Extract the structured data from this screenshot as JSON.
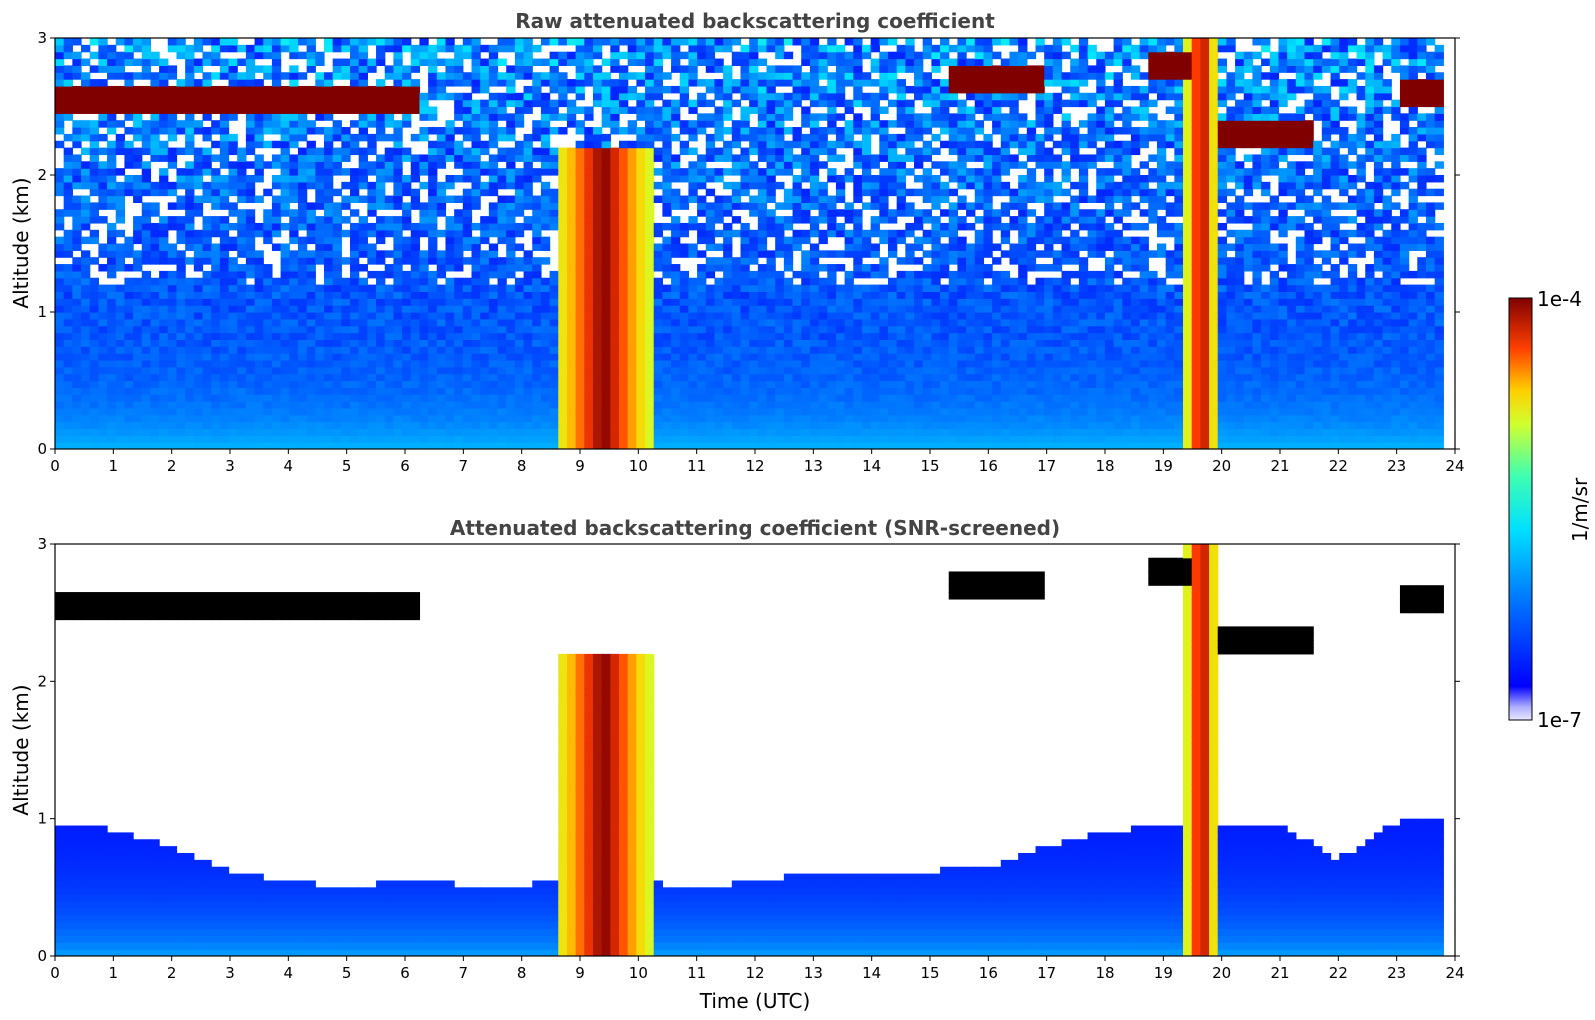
{
  "chart_data": [
    {
      "type": "heatmap",
      "title": "Raw attenuated backscattering coefficient",
      "xlabel": "",
      "ylabel": "Altitude (km)",
      "xlim": [
        0,
        24
      ],
      "ylim": [
        0,
        3
      ],
      "xticks": [
        "0",
        "1",
        "2",
        "3",
        "4",
        "5",
        "6",
        "7",
        "8",
        "9",
        "10",
        "11",
        "12",
        "13",
        "14",
        "15",
        "16",
        "17",
        "18",
        "19",
        "20",
        "21",
        "22",
        "23",
        "24"
      ],
      "yticks": [
        "0",
        "1",
        "2",
        "3"
      ],
      "data_time_range_utc": [
        0,
        23.8
      ],
      "screened": false,
      "cloud_layers": [
        {
          "t_start": 0.0,
          "t_end": 6.3,
          "alt_km": 2.55
        },
        {
          "t_start": 15.3,
          "t_end": 17.0,
          "alt_km": 2.7
        },
        {
          "t_start": 18.7,
          "t_end": 19.5,
          "alt_km": 2.8
        },
        {
          "t_start": 20.0,
          "t_end": 21.5,
          "alt_km": 2.3
        },
        {
          "t_start": 23.0,
          "t_end": 23.8,
          "alt_km": 2.6
        }
      ],
      "precipitation_columns": [
        {
          "t_start": 8.6,
          "t_end": 10.2,
          "top_km": 2.2
        },
        {
          "t_start": 19.4,
          "t_end": 19.9,
          "top_km": 3.0
        }
      ]
    },
    {
      "type": "heatmap",
      "title": "Attenuated backscattering coefficient (SNR-screened)",
      "xlabel": "Time (UTC)",
      "ylabel": "Altitude (km)",
      "xlim": [
        0,
        24
      ],
      "ylim": [
        0,
        3
      ],
      "xticks": [
        "0",
        "1",
        "2",
        "3",
        "4",
        "5",
        "6",
        "7",
        "8",
        "9",
        "10",
        "11",
        "12",
        "13",
        "14",
        "15",
        "16",
        "17",
        "18",
        "19",
        "20",
        "21",
        "22",
        "23",
        "24"
      ],
      "yticks": [
        "0",
        "1",
        "2",
        "3"
      ],
      "data_time_range_utc": [
        0,
        23.8
      ],
      "screened": true,
      "boundary_layer_top_km": [
        [
          0,
          0.95
        ],
        [
          1,
          0.92
        ],
        [
          2,
          0.8
        ],
        [
          3,
          0.62
        ],
        [
          4,
          0.55
        ],
        [
          5,
          0.5
        ],
        [
          6,
          0.55
        ],
        [
          7,
          0.52
        ],
        [
          8,
          0.5
        ],
        [
          9,
          0.6
        ],
        [
          10,
          0.55
        ],
        [
          11,
          0.48
        ],
        [
          12,
          0.55
        ],
        [
          13,
          0.6
        ],
        [
          14,
          0.58
        ],
        [
          15,
          0.62
        ],
        [
          16,
          0.65
        ],
        [
          17,
          0.8
        ],
        [
          18,
          0.9
        ],
        [
          19,
          0.95
        ],
        [
          20,
          0.95
        ],
        [
          21,
          0.95
        ],
        [
          22,
          0.7
        ],
        [
          23,
          0.98
        ],
        [
          23.8,
          1.0
        ]
      ]
    }
  ],
  "colorbar": {
    "min_label": "1e-7",
    "max_label": "1e-4",
    "unit_label": "1/m/sr",
    "colormap": "jet",
    "masked_color": "#ffffff",
    "cloud_saturation_color_screened": "#000000"
  }
}
